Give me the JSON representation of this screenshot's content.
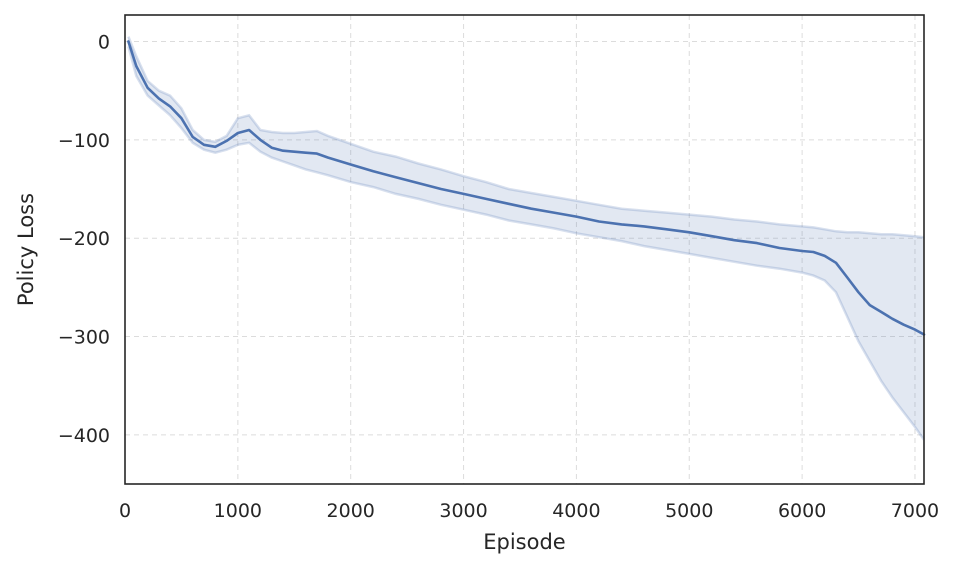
{
  "chart_data": {
    "type": "line",
    "title": "",
    "xlabel": "Episode",
    "ylabel": "Policy Loss",
    "xlim": [
      0,
      7080
    ],
    "ylim": [
      -450,
      27
    ],
    "xticks": [
      0,
      1000,
      2000,
      3000,
      4000,
      5000,
      6000,
      7000
    ],
    "yticks": [
      0,
      -100,
      -200,
      -300,
      -400
    ],
    "xtick_labels": [
      "0",
      "1000",
      "2000",
      "3000",
      "4000",
      "5000",
      "6000",
      "7000"
    ],
    "ytick_labels": [
      "0",
      "−100",
      "−200",
      "−300",
      "−400"
    ],
    "grid": true,
    "colors": {
      "line": "#4c72b0",
      "band": "#4c72b0",
      "grid": "#dcdcdc",
      "frame": "#262626"
    },
    "series": [
      {
        "x": [
          30,
          100,
          200,
          300,
          400,
          500,
          600,
          700,
          800,
          900,
          1000,
          1100,
          1200,
          1300,
          1400,
          1500,
          1600,
          1700,
          1800,
          2000,
          2200,
          2400,
          2600,
          2800,
          3000,
          3200,
          3400,
          3600,
          3800,
          4000,
          4200,
          4400,
          4600,
          4800,
          5000,
          5200,
          5400,
          5600,
          5800,
          6000,
          6100,
          6200,
          6300,
          6400,
          6500,
          6600,
          6700,
          6800,
          6900,
          7000,
          7080
        ],
        "y": [
          0,
          -25,
          -47,
          -58,
          -66,
          -78,
          -97,
          -105,
          -107,
          -101,
          -93,
          -90,
          -100,
          -108,
          -111,
          -112,
          -113,
          -114,
          -118,
          -125,
          -132,
          -138,
          -144,
          -150,
          -155,
          -160,
          -165,
          -170,
          -174,
          -178,
          -183,
          -186,
          -188,
          -191,
          -194,
          -198,
          -202,
          -205,
          -210,
          -213,
          -214,
          -218,
          -225,
          -240,
          -255,
          -268,
          -275,
          -282,
          -288,
          -293,
          -298
        ],
        "upper": [
          5,
          -15,
          -40,
          -50,
          -55,
          -68,
          -90,
          -100,
          -102,
          -96,
          -78,
          -75,
          -90,
          -92,
          -93,
          -93,
          -92,
          -91,
          -96,
          -104,
          -112,
          -117,
          -124,
          -130,
          -137,
          -143,
          -150,
          -154,
          -158,
          -162,
          -166,
          -170,
          -172,
          -174,
          -176,
          -178,
          -181,
          -183,
          -186,
          -188,
          -189,
          -191,
          -193,
          -194,
          -194,
          -195,
          -196,
          -196,
          -197,
          -198,
          -199
        ],
        "lower": [
          -5,
          -35,
          -55,
          -65,
          -75,
          -88,
          -103,
          -110,
          -113,
          -110,
          -105,
          -103,
          -112,
          -118,
          -122,
          -126,
          -130,
          -133,
          -136,
          -143,
          -148,
          -155,
          -160,
          -166,
          -171,
          -176,
          -182,
          -186,
          -190,
          -195,
          -199,
          -203,
          -208,
          -212,
          -216,
          -220,
          -224,
          -228,
          -231,
          -235,
          -238,
          -243,
          -255,
          -280,
          -305,
          -325,
          -345,
          -362,
          -377,
          -392,
          -405
        ]
      }
    ]
  }
}
